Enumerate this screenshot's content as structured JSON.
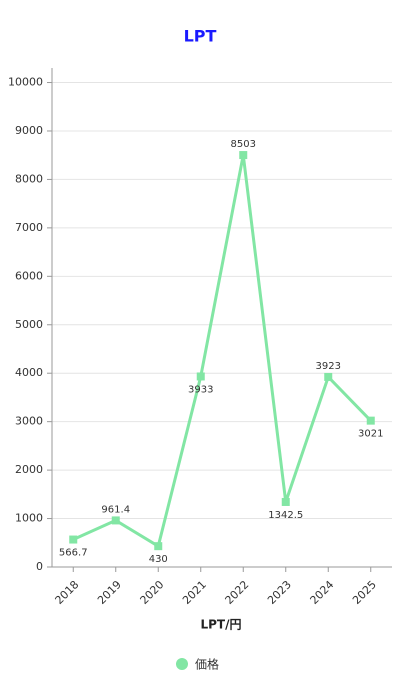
{
  "chart_data": {
    "type": "line",
    "title": "LPT",
    "x_label": "LPT/円",
    "categories": [
      "2018",
      "2019",
      "2020",
      "2021",
      "2022",
      "2023",
      "2024",
      "2025"
    ],
    "series": [
      {
        "name": "価格",
        "color": "#82e6a4",
        "values": [
          566.7,
          961.4,
          430,
          3933,
          8503,
          1342.5,
          3923,
          3021
        ]
      }
    ],
    "ylim": [
      0,
      10300
    ],
    "yticks": [
      0,
      1000,
      2000,
      3000,
      4000,
      5000,
      6000,
      7000,
      8000,
      9000,
      10000
    ],
    "grid": true,
    "legend": "bottom"
  }
}
